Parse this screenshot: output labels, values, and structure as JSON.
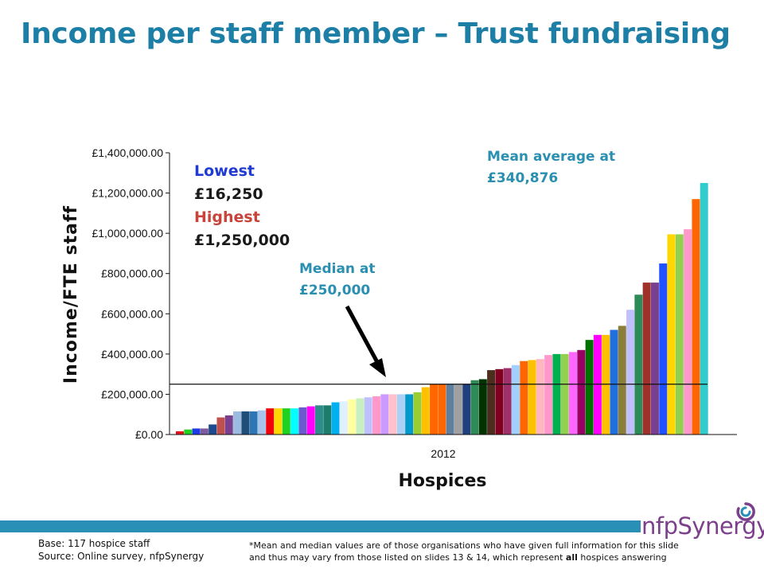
{
  "title": "Income per staff member – Trust fundraising",
  "callouts": {
    "lowest_label": "Lowest",
    "lowest_value": "£16,250",
    "highest_label": "Highest",
    "highest_value": "£1,250,000",
    "median_line1": "Median at",
    "median_line2": "£250,000",
    "mean_line1": "Mean average at",
    "mean_line2": "£340,876"
  },
  "footer": {
    "base": "Base: 117 hospice staff",
    "source": "Source: Online survey, nfpSynergy",
    "note_line1": "*Mean and median values are of those organisations who have given full information for this slide",
    "note_line2_a": "and thus may vary from those listed on slides 13 & 14, which represent ",
    "note_line2_bold": "all",
    "note_line2_b": " hospices answering",
    "logo_a": "nfp",
    "logo_b": "Synergy"
  },
  "chart_data": {
    "type": "bar",
    "title": "",
    "xlabel": "Hospices",
    "ylabel": "Income/FTE staff",
    "category": "2012",
    "ylim": [
      0,
      1400000
    ],
    "yticks": [
      0,
      200000,
      400000,
      600000,
      800000,
      1000000,
      1200000,
      1400000
    ],
    "ytick_labels": [
      "£0.00",
      "£200,000.00",
      "£400,000.00",
      "£600,000.00",
      "£800,000.00",
      "£1,000,000.00",
      "£1,200,000.00",
      "£1,400,000.00"
    ],
    "reference_line": 250000,
    "values": [
      16250,
      25000,
      30000,
      30000,
      50000,
      85000,
      95000,
      115000,
      115000,
      115000,
      120000,
      130000,
      130000,
      130000,
      130000,
      135000,
      140000,
      145000,
      145000,
      160000,
      165000,
      175000,
      180000,
      185000,
      190000,
      200000,
      200000,
      200000,
      200000,
      210000,
      235000,
      250000,
      250000,
      250000,
      250000,
      250000,
      270000,
      275000,
      320000,
      325000,
      330000,
      345000,
      365000,
      370000,
      375000,
      395000,
      400000,
      400000,
      410000,
      420000,
      470000,
      495000,
      495000,
      520000,
      540000,
      620000,
      695000,
      755000,
      755000,
      850000,
      995000,
      995000,
      1020000,
      1170000,
      1250000
    ],
    "colors": [
      "#e8111a",
      "#1fd21f",
      "#1f39e8",
      "#7c5c9c",
      "#1d4a8c",
      "#c0504d",
      "#7a3f8f",
      "#9bbbe0",
      "#1f4e79",
      "#2e75b6",
      "#a9c4eb",
      "#f0020c",
      "#ffd700",
      "#1fd21f",
      "#00ffff",
      "#6a5acd",
      "#ff00ff",
      "#2e8b8b",
      "#1d7d6d",
      "#00b0f0",
      "#e0f0ff",
      "#ffffa0",
      "#c7f0c0",
      "#c0c0ff",
      "#ff99cc",
      "#cc99ff",
      "#ffc0cb",
      "#a9d0f5",
      "#0099cc",
      "#9acd32",
      "#ffc000",
      "#ff6600",
      "#ff6600",
      "#5f7f9f",
      "#a0a0a0",
      "#1f3f7f",
      "#2e8b57",
      "#003300",
      "#4b2e1e",
      "#800020",
      "#a0306a",
      "#9fd0ff",
      "#ff6600",
      "#ffc000",
      "#ffb6c1",
      "#ff99cc",
      "#00b050",
      "#92d050",
      "#ff66ff",
      "#990066",
      "#007000",
      "#ff00ff",
      "#ffc000",
      "#1f6fdf",
      "#8b7d3a",
      "#c0c0ff",
      "#2e8b57",
      "#a0302a",
      "#7a3f8f",
      "#1f51ff",
      "#ffd700",
      "#92d050",
      "#ff99cc",
      "#ff6600",
      "#33cccc"
    ]
  }
}
